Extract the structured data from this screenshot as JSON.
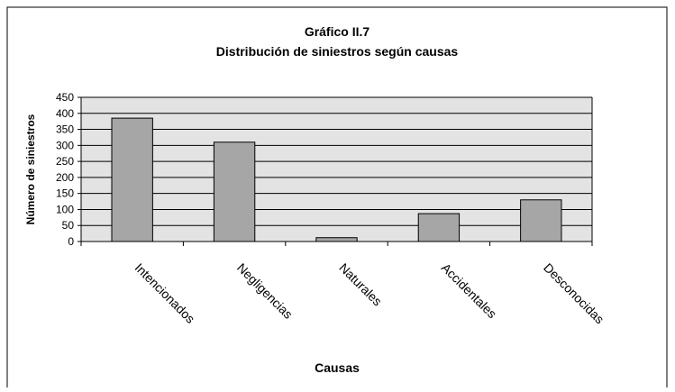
{
  "chart_data": {
    "type": "bar",
    "title": "Gráfico II.7",
    "subtitle": "Distribución de siniestros según causas",
    "x_label": "Causas",
    "y_label": "Número de siniestros",
    "categories": [
      "Intencionados",
      "Negligencias",
      "Naturales",
      "Accidentales",
      "Desconocidas"
    ],
    "values": [
      385,
      310,
      12,
      87,
      130
    ],
    "color": "#a6a6a6",
    "ylim": [
      0,
      450
    ],
    "yticks": [
      0,
      50,
      100,
      150,
      200,
      250,
      300,
      350,
      400,
      450
    ],
    "grid": true
  }
}
